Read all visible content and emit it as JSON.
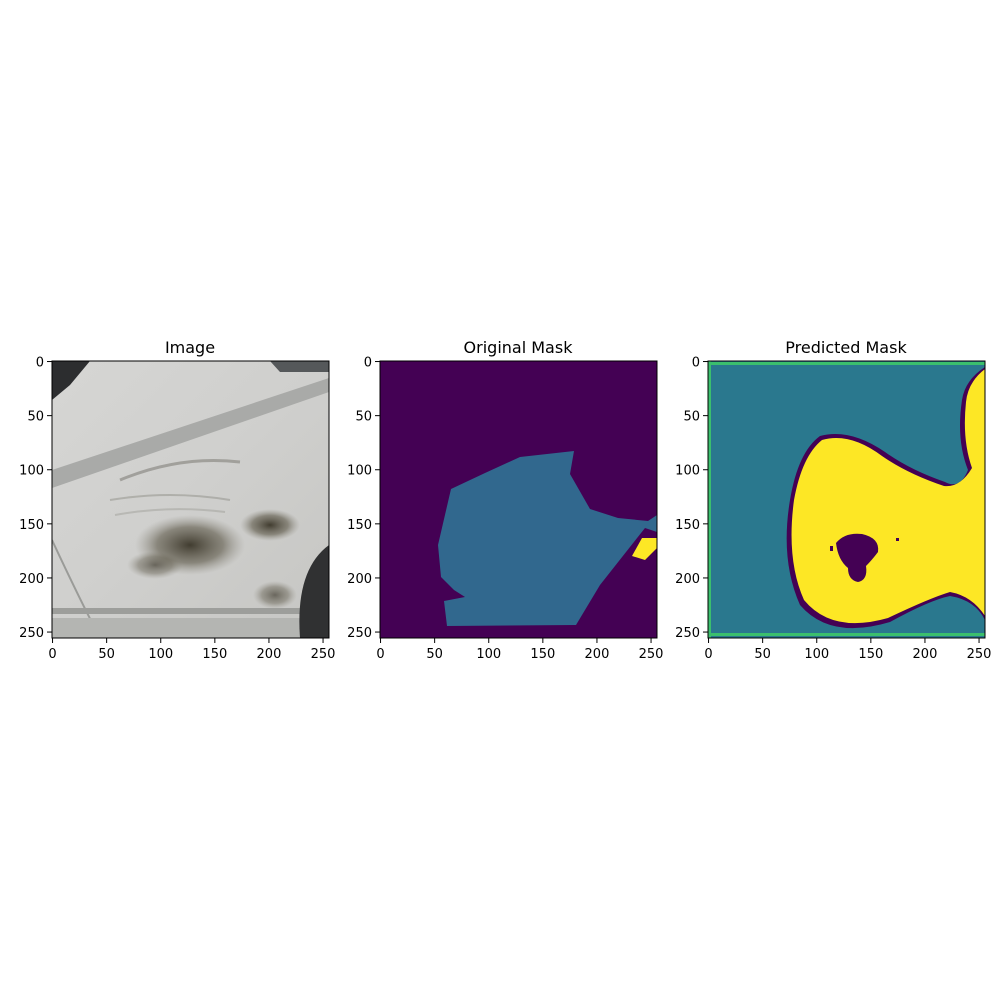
{
  "figure": {
    "panels": [
      {
        "title": "Image",
        "yticks": [
          "0",
          "50",
          "100",
          "150",
          "200",
          "250"
        ],
        "xticks": [
          "0",
          "50",
          "100",
          "150",
          "200",
          "250"
        ],
        "content": "photo of a scratched white car door"
      },
      {
        "title": "Original Mask",
        "yticks": [
          "0",
          "50",
          "100",
          "150",
          "200",
          "250"
        ],
        "xticks": [
          "0",
          "50",
          "100",
          "150",
          "200",
          "250"
        ],
        "content": "segmentation mask"
      },
      {
        "title": "Predicted Mask",
        "yticks": [
          "0",
          "50",
          "100",
          "150",
          "200",
          "250"
        ],
        "xticks": [
          "0",
          "50",
          "100",
          "150",
          "200",
          "250"
        ],
        "content": "segmentation mask"
      }
    ],
    "colors": {
      "mask_background": "#440154",
      "mask_class_1": "#31688e",
      "mask_class_2": "#fde725",
      "pred_teal": "#2a788e"
    }
  }
}
